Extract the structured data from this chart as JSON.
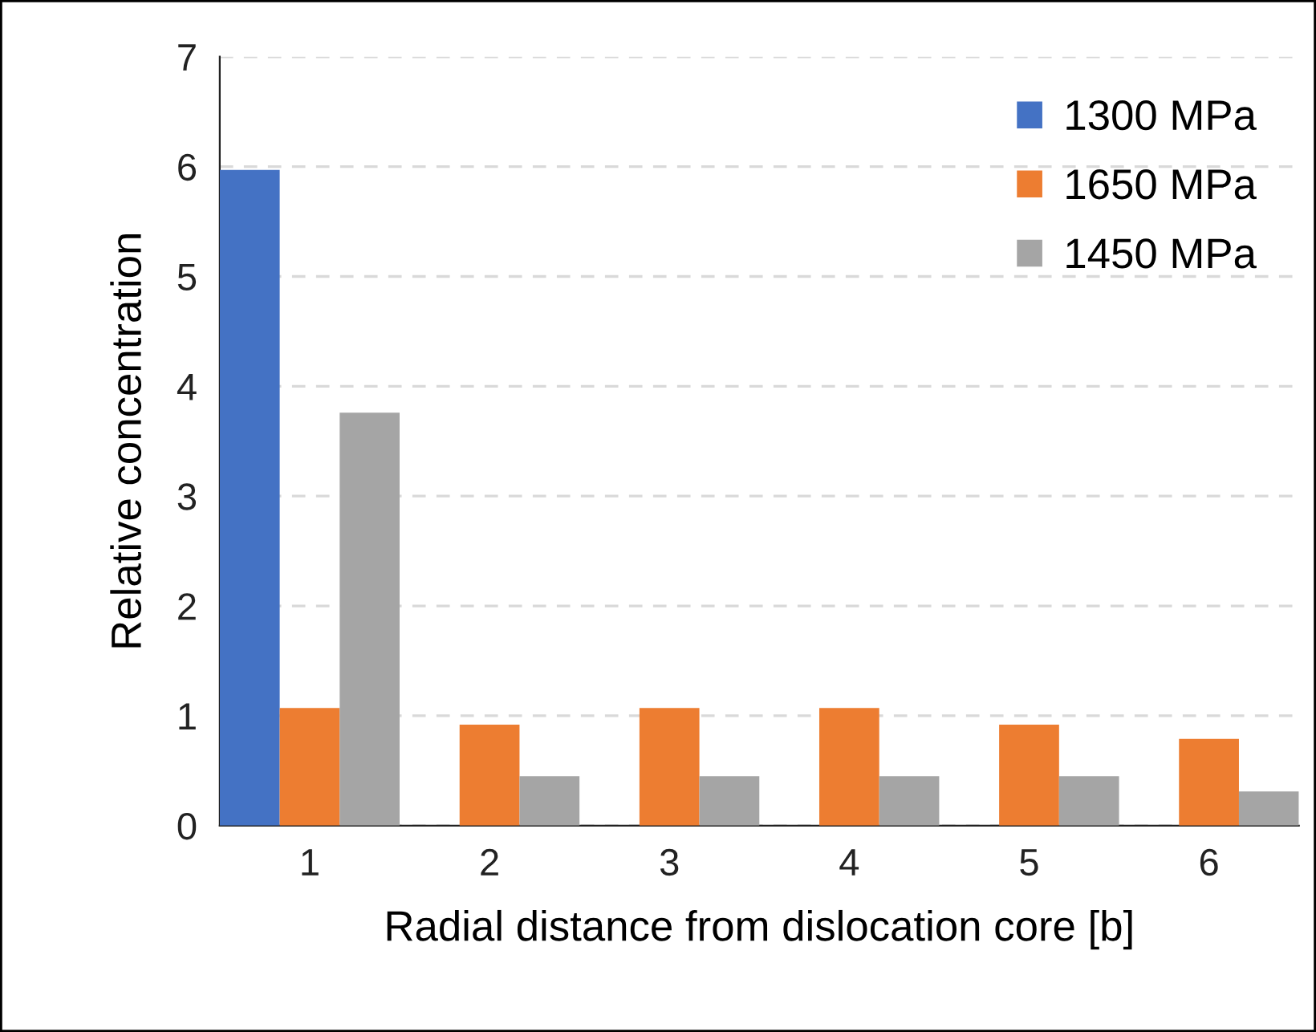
{
  "chart_data": {
    "type": "bar",
    "xlabel": "Radial distance from dislocation core [b]",
    "ylabel": "Relative concentration",
    "categories": [
      "1",
      "2",
      "3",
      "4",
      "5",
      "6"
    ],
    "series": [
      {
        "name": "1300 MPa",
        "color": "#4472c4",
        "values": [
          5.97,
          0,
          0,
          0,
          0,
          0
        ]
      },
      {
        "name": "1650 MPa",
        "color": "#ed7d31",
        "values": [
          1.07,
          0.92,
          1.07,
          1.07,
          0.92,
          0.79
        ]
      },
      {
        "name": "1450 MPa",
        "color": "#a5a5a5",
        "values": [
          3.76,
          0.45,
          0.45,
          0.45,
          0.45,
          0.31
        ]
      }
    ],
    "ylim": [
      0,
      7
    ],
    "yticks": [
      0,
      1,
      2,
      3,
      4,
      5,
      6,
      7
    ],
    "grid": "y",
    "legend": "top right"
  }
}
